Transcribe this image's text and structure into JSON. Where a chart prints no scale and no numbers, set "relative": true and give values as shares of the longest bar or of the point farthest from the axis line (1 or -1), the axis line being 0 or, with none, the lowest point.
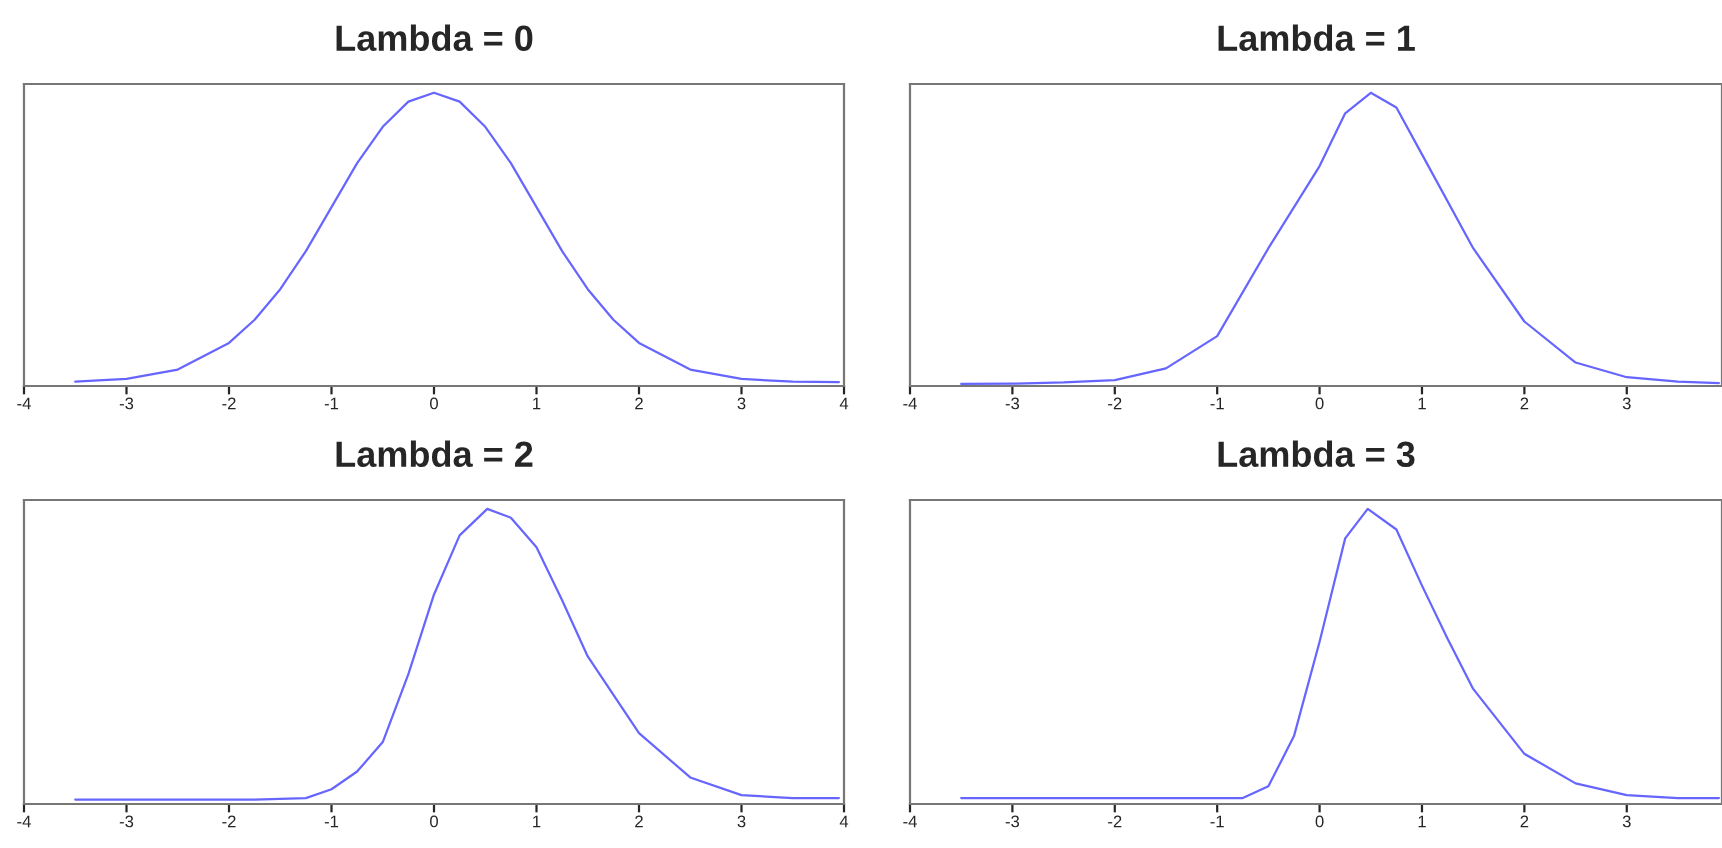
{
  "chart_data": [
    {
      "type": "line",
      "title": "Lambda = 0",
      "relative": true,
      "xlim": [
        -4,
        4
      ],
      "xticks": [
        -4,
        -3,
        -2,
        -1,
        0,
        1,
        2,
        3,
        4
      ],
      "grid": false,
      "x": [
        -3.5,
        -3,
        -2.5,
        -2,
        -1.75,
        -1.5,
        -1.25,
        -1,
        -0.75,
        -0.5,
        -0.25,
        0,
        0.25,
        0.5,
        0.75,
        1,
        1.25,
        1.5,
        1.75,
        2,
        2.5,
        3,
        3.5,
        3.95
      ],
      "series": [
        {
          "color": "#6666ff",
          "values": [
            0.015,
            0.024,
            0.056,
            0.147,
            0.226,
            0.33,
            0.46,
            0.61,
            0.76,
            0.884,
            0.97,
            1,
            0.97,
            0.884,
            0.76,
            0.61,
            0.46,
            0.33,
            0.226,
            0.147,
            0.056,
            0.024,
            0.015,
            0.013
          ]
        }
      ]
    },
    {
      "type": "line",
      "title": "Lambda = 1",
      "relative": true,
      "xlim": [
        -4,
        3.93
      ],
      "xticks": [
        -4,
        -3,
        -2,
        -1,
        0,
        1,
        2,
        3
      ],
      "grid": false,
      "x": [
        -3.5,
        -3,
        -2.5,
        -2,
        -1.5,
        -1,
        -0.5,
        0,
        0.25,
        0.5,
        0.75,
        1,
        1.5,
        2,
        2.5,
        3,
        3.5,
        3.9
      ],
      "series": [
        {
          "color": "#6666ff",
          "values": [
            0.007,
            0.008,
            0.012,
            0.02,
            0.06,
            0.17,
            0.47,
            0.75,
            0.93,
            1,
            0.95,
            0.79,
            0.47,
            0.22,
            0.08,
            0.03,
            0.015,
            0.01
          ]
        }
      ]
    },
    {
      "type": "line",
      "title": "Lambda = 2",
      "relative": true,
      "xlim": [
        -4,
        4
      ],
      "xticks": [
        -4,
        -3,
        -2,
        -1,
        0,
        1,
        2,
        3,
        4
      ],
      "grid": false,
      "x": [
        -3.5,
        -2.5,
        -1.75,
        -1.25,
        -1,
        -0.75,
        -0.5,
        -0.25,
        0,
        0.25,
        0.52,
        0.75,
        1,
        1.25,
        1.5,
        2,
        2.5,
        3,
        3.5,
        3.95
      ],
      "series": [
        {
          "color": "#6666ff",
          "values": [
            0.015,
            0.015,
            0.015,
            0.02,
            0.05,
            0.11,
            0.21,
            0.44,
            0.71,
            0.91,
            1,
            0.97,
            0.87,
            0.69,
            0.5,
            0.24,
            0.09,
            0.03,
            0.02,
            0.02
          ]
        }
      ]
    },
    {
      "type": "line",
      "title": "Lambda = 3",
      "relative": true,
      "xlim": [
        -4,
        3.93
      ],
      "xticks": [
        -4,
        -3,
        -2,
        -1,
        0,
        1,
        2,
        3
      ],
      "grid": false,
      "x": [
        -3.5,
        -2.5,
        -1.5,
        -1,
        -0.75,
        -0.5,
        -0.25,
        0,
        0.25,
        0.47,
        0.75,
        1,
        1.25,
        1.5,
        2,
        2.5,
        3,
        3.5,
        3.9
      ],
      "series": [
        {
          "color": "#6666ff",
          "values": [
            0.02,
            0.02,
            0.02,
            0.02,
            0.02,
            0.06,
            0.23,
            0.55,
            0.9,
            1,
            0.93,
            0.74,
            0.56,
            0.39,
            0.17,
            0.07,
            0.03,
            0.02,
            0.02
          ]
        }
      ]
    }
  ]
}
